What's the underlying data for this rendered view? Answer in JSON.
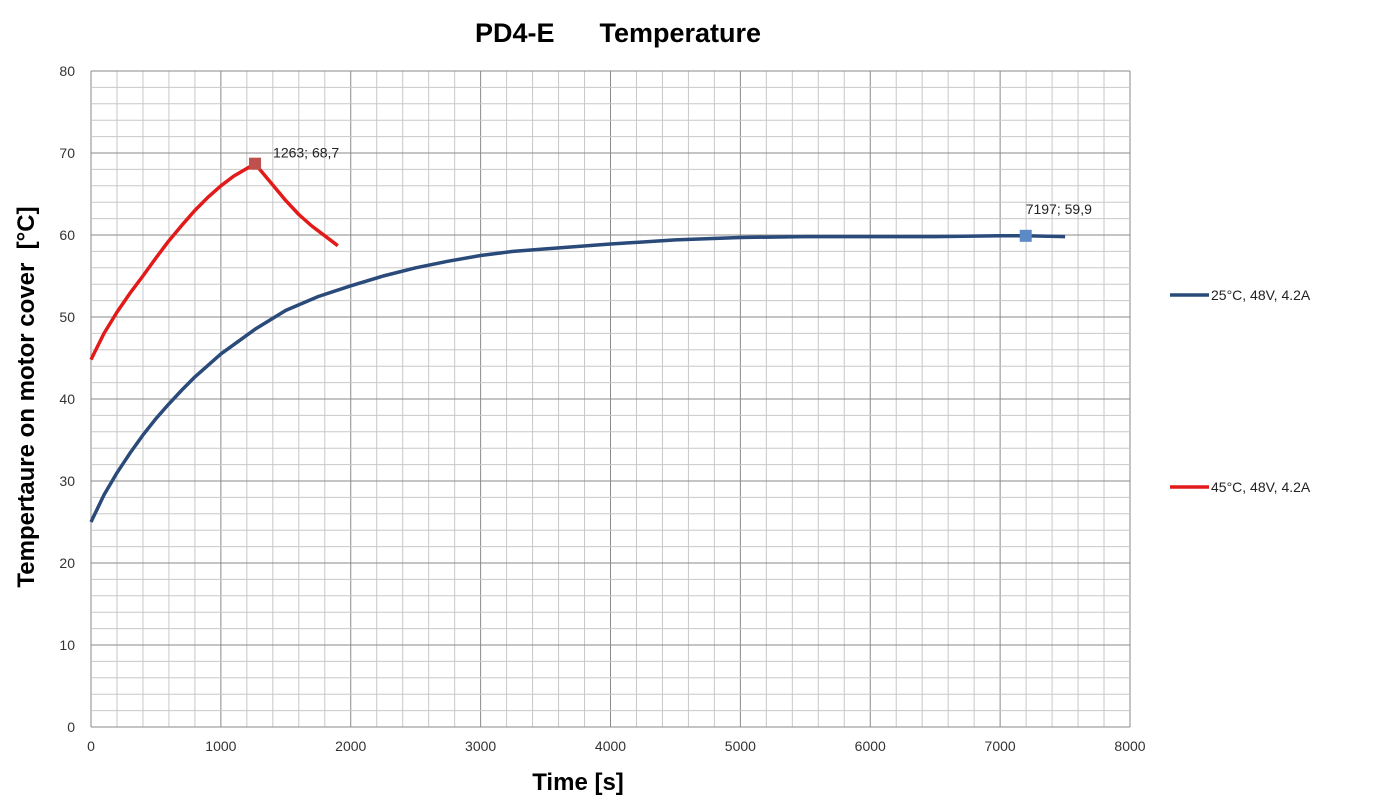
{
  "chart_data": {
    "type": "line",
    "title": "PD4-E      Temperature",
    "xlabel": "Time [s]",
    "ylabel": "Tempertaure on motor cover  [°C]",
    "xlim": [
      0,
      8000
    ],
    "ylim": [
      0,
      80
    ],
    "xticks": [
      "0",
      "1000",
      "2000",
      "3000",
      "4000",
      "5000",
      "6000",
      "7000",
      "8000"
    ],
    "yticks": [
      "0",
      "10",
      "20",
      "30",
      "40",
      "50",
      "60",
      "70",
      "80"
    ],
    "grid": true,
    "legend_position": "right",
    "series": [
      {
        "name": "25°C, 48V, 4.2A",
        "color": "#2a4a7a",
        "x": [
          0,
          100,
          200,
          300,
          400,
          500,
          600,
          700,
          800,
          900,
          1000,
          1263,
          1500,
          1750,
          2000,
          2250,
          2500,
          2750,
          3000,
          3250,
          3500,
          4000,
          4500,
          5000,
          5500,
          6000,
          6500,
          7000,
          7197,
          7500
        ],
        "y": [
          25,
          28.3,
          31,
          33.4,
          35.6,
          37.6,
          39.4,
          41.1,
          42.7,
          44.1,
          45.5,
          48.5,
          50.8,
          52.5,
          53.8,
          55,
          56,
          56.8,
          57.5,
          58,
          58.3,
          58.9,
          59.4,
          59.7,
          59.8,
          59.8,
          59.8,
          59.9,
          59.9,
          59.8
        ],
        "marker": {
          "x": 7197,
          "y": 59.9,
          "label": "7197; 59,9",
          "color": "#5b8ac6"
        }
      },
      {
        "name": "45°C, 48V, 4.2A",
        "color": "#e21a1a",
        "x": [
          0,
          100,
          200,
          300,
          400,
          500,
          600,
          700,
          800,
          900,
          1000,
          1100,
          1263,
          1400,
          1500,
          1600,
          1700,
          1800,
          1900
        ],
        "y": [
          44.8,
          48,
          50.6,
          52.9,
          55,
          57.2,
          59.3,
          61.2,
          63,
          64.6,
          66,
          67.2,
          68.7,
          66.1,
          64.2,
          62.5,
          61.1,
          59.9,
          58.7
        ],
        "marker": {
          "x": 1263,
          "y": 68.7,
          "label": "1263; 68,7",
          "color": "#c0504d"
        }
      }
    ]
  }
}
